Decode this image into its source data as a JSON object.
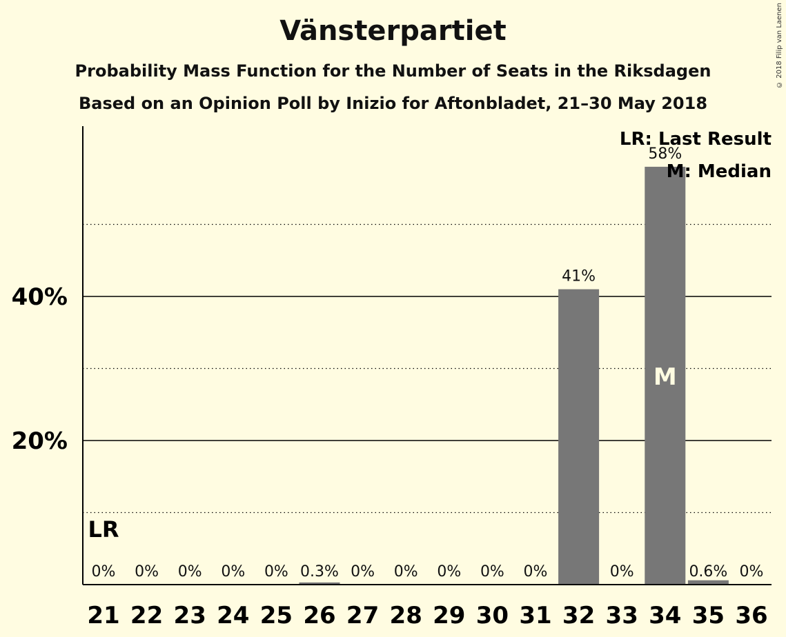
{
  "title": "Vänsterpartiet",
  "subtitle1": "Probability Mass Function for the Number of Seats in the Riksdagen",
  "subtitle2": "Based on an Opinion Poll by Inizio for Aftonbladet, 21–30 May 2018",
  "copyright": "© 2018 Filip van Laenen",
  "legend": {
    "lr": "LR: Last Result",
    "m": "M: Median"
  },
  "colors": {
    "background": "#fffce1",
    "bar": "#777777",
    "axis": "#000000"
  },
  "chart_data": {
    "type": "bar",
    "categories": [
      "21",
      "22",
      "23",
      "24",
      "25",
      "26",
      "27",
      "28",
      "29",
      "30",
      "31",
      "32",
      "33",
      "34",
      "35",
      "36"
    ],
    "values": [
      0,
      0,
      0,
      0,
      0,
      0.3,
      0,
      0,
      0,
      0,
      0,
      41,
      0,
      58,
      0.6,
      0
    ],
    "value_labels": [
      "0%",
      "0%",
      "0%",
      "0%",
      "0%",
      "0.3%",
      "0%",
      "0%",
      "0%",
      "0%",
      "0%",
      "41%",
      "0%",
      "58%",
      "0.6%",
      "0%"
    ],
    "ylim": [
      0,
      63
    ],
    "yticks": [
      20,
      40
    ],
    "ytick_labels": [
      "20%",
      "40%"
    ],
    "dotted_gridlines": [
      10,
      30,
      50
    ],
    "last_result": {
      "category": "21",
      "label": "LR"
    },
    "median": {
      "category": "34",
      "label": "M"
    },
    "legend_position": "top-right"
  }
}
